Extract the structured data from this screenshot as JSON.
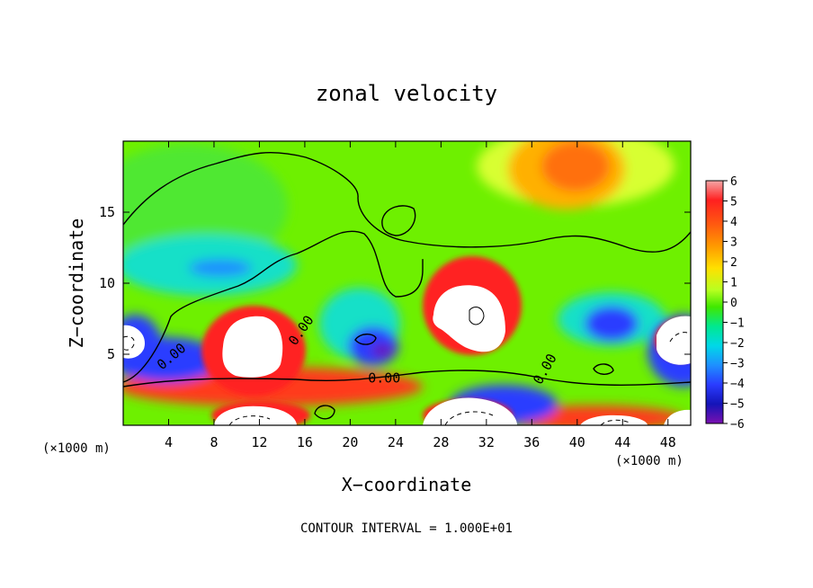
{
  "chart_data": {
    "type": "heatmap",
    "title": "zonal velocity",
    "xlabel": "X−coordinate",
    "ylabel": "Z−coordinate",
    "x_unit_left": "(×1000 m)",
    "x_unit_right": "(×1000 m)",
    "xlim": [
      0,
      50
    ],
    "ylim": [
      0,
      20
    ],
    "x_ticks": [
      4,
      8,
      12,
      16,
      20,
      24,
      28,
      32,
      36,
      40,
      44,
      48
    ],
    "y_ticks": [
      5,
      10,
      15
    ],
    "colorbar": {
      "min": -6,
      "max": 6,
      "ticks": [
        "6",
        "5",
        "4",
        "3",
        "2",
        "1",
        "0",
        "−1",
        "−2",
        "−3",
        "−4",
        "−5",
        "−6"
      ],
      "colors": [
        "#f4a6a6",
        "#ff2020",
        "#ff3a1a",
        "#ff8c00",
        "#ffd400",
        "#e8ff30",
        "#7cf000",
        "#22dd22",
        "#00e8a0",
        "#00d8e8",
        "#1e90ff",
        "#2a3cff",
        "#1414b8",
        "#7a10b0"
      ]
    },
    "contour_labels": [
      "0.00",
      "0.00",
      "0.00",
      "0.00"
    ],
    "footer": "CONTOUR INTERVAL = 1.000E+01",
    "features": [
      {
        "x": 40,
        "z": 18,
        "value": 4.2
      },
      {
        "x": 11,
        "z": 7,
        "value": 7
      },
      {
        "x": 31,
        "z": 7.5,
        "value": 7
      },
      {
        "x": 10,
        "z": 10.8,
        "value": -2.5
      },
      {
        "x": 23,
        "z": 5,
        "value": -5
      },
      {
        "x": 43,
        "z": 6.5,
        "value": -3.5
      },
      {
        "x": 20,
        "z": 1,
        "value": 6.5
      },
      {
        "x": 48,
        "z": 5.5,
        "value": 7
      }
    ]
  }
}
